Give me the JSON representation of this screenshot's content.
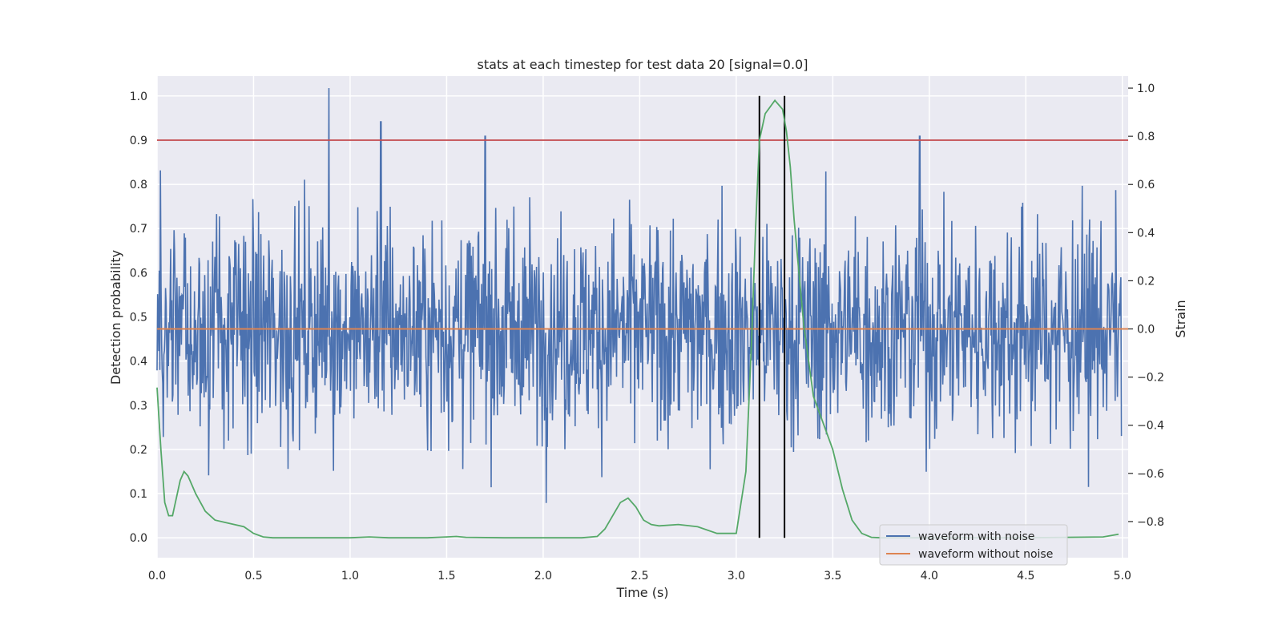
{
  "chart_data": {
    "type": "line",
    "title": "stats at each timestep for test data 20 [signal=0.0]",
    "xlabel": "Time (s)",
    "ylabel": "Detection probability",
    "ylabel_right": "Strain",
    "xlim": [
      0.0,
      5.03
    ],
    "ylim": [
      -0.045,
      1.045
    ],
    "ylim_right": [
      -0.95,
      1.05
    ],
    "xticks": [
      "0.0",
      "0.5",
      "1.0",
      "1.5",
      "2.0",
      "2.5",
      "3.0",
      "3.5",
      "4.0",
      "4.5",
      "5.0"
    ],
    "yticks": [
      "0.0",
      "0.1",
      "0.2",
      "0.3",
      "0.4",
      "0.5",
      "0.6",
      "0.7",
      "0.8",
      "0.9",
      "1.0"
    ],
    "yticks_right": [
      "−0.8",
      "−0.6",
      "−0.4",
      "−0.2",
      "0.0",
      "0.2",
      "0.4",
      "0.6",
      "0.8",
      "1.0"
    ],
    "grid": true,
    "legend_position": "lower-right",
    "colors": {
      "noise": "#4c72b0",
      "clean": "#dd8452",
      "prob": "#55a868",
      "threshold": "#c44e52",
      "marker": "#000000",
      "background": "#eaeaf2"
    },
    "series": [
      {
        "name": "waveform with noise",
        "axis": "right",
        "style": "dense noisy strain, approx. mean 0.0, spread about -0.75 to 0.85",
        "notable_peaks": [
          {
            "x": 0.89,
            "y": 1.0
          },
          {
            "x": 1.16,
            "y": 0.86
          },
          {
            "x": 1.7,
            "y": 0.8
          },
          {
            "x": 3.95,
            "y": 0.8
          }
        ]
      },
      {
        "name": "waveform without noise",
        "axis": "right",
        "values_constant": 0.0
      },
      {
        "axis": "left",
        "x": [
          0.0,
          0.02,
          0.04,
          0.06,
          0.08,
          0.1,
          0.12,
          0.14,
          0.16,
          0.18,
          0.2,
          0.25,
          0.3,
          0.35,
          0.4,
          0.45,
          0.5,
          0.55,
          0.6,
          0.7,
          0.8,
          0.9,
          1.0,
          1.1,
          1.2,
          1.3,
          1.4,
          1.5,
          1.55,
          1.6,
          1.8,
          2.0,
          2.2,
          2.28,
          2.32,
          2.36,
          2.4,
          2.44,
          2.48,
          2.52,
          2.56,
          2.6,
          2.7,
          2.8,
          2.9,
          3.0,
          3.05,
          3.08,
          3.1,
          3.12,
          3.15,
          3.2,
          3.24,
          3.26,
          3.28,
          3.3,
          3.35,
          3.4,
          3.45,
          3.5,
          3.55,
          3.6,
          3.65,
          3.7,
          3.75,
          3.8,
          4.0,
          4.5,
          4.9,
          4.98
        ],
        "values": [
          0.34,
          0.2,
          0.08,
          0.05,
          0.05,
          0.09,
          0.13,
          0.15,
          0.14,
          0.12,
          0.1,
          0.06,
          0.04,
          0.035,
          0.03,
          0.025,
          0.01,
          0.002,
          0.0,
          0.0,
          0.0,
          0.0,
          0.0,
          0.002,
          0.0,
          0.0,
          0.0,
          0.002,
          0.003,
          0.001,
          0.0,
          0.0,
          0.0,
          0.003,
          0.02,
          0.05,
          0.08,
          0.09,
          0.07,
          0.04,
          0.03,
          0.027,
          0.03,
          0.025,
          0.01,
          0.01,
          0.15,
          0.45,
          0.7,
          0.9,
          0.96,
          0.99,
          0.97,
          0.92,
          0.84,
          0.72,
          0.48,
          0.32,
          0.26,
          0.2,
          0.11,
          0.04,
          0.01,
          0.001,
          0.0,
          0.0,
          0.0,
          0.0,
          0.002,
          0.008
        ]
      }
    ],
    "threshold": {
      "y": 0.9
    },
    "vertical_markers": [
      3.12,
      3.25
    ]
  }
}
